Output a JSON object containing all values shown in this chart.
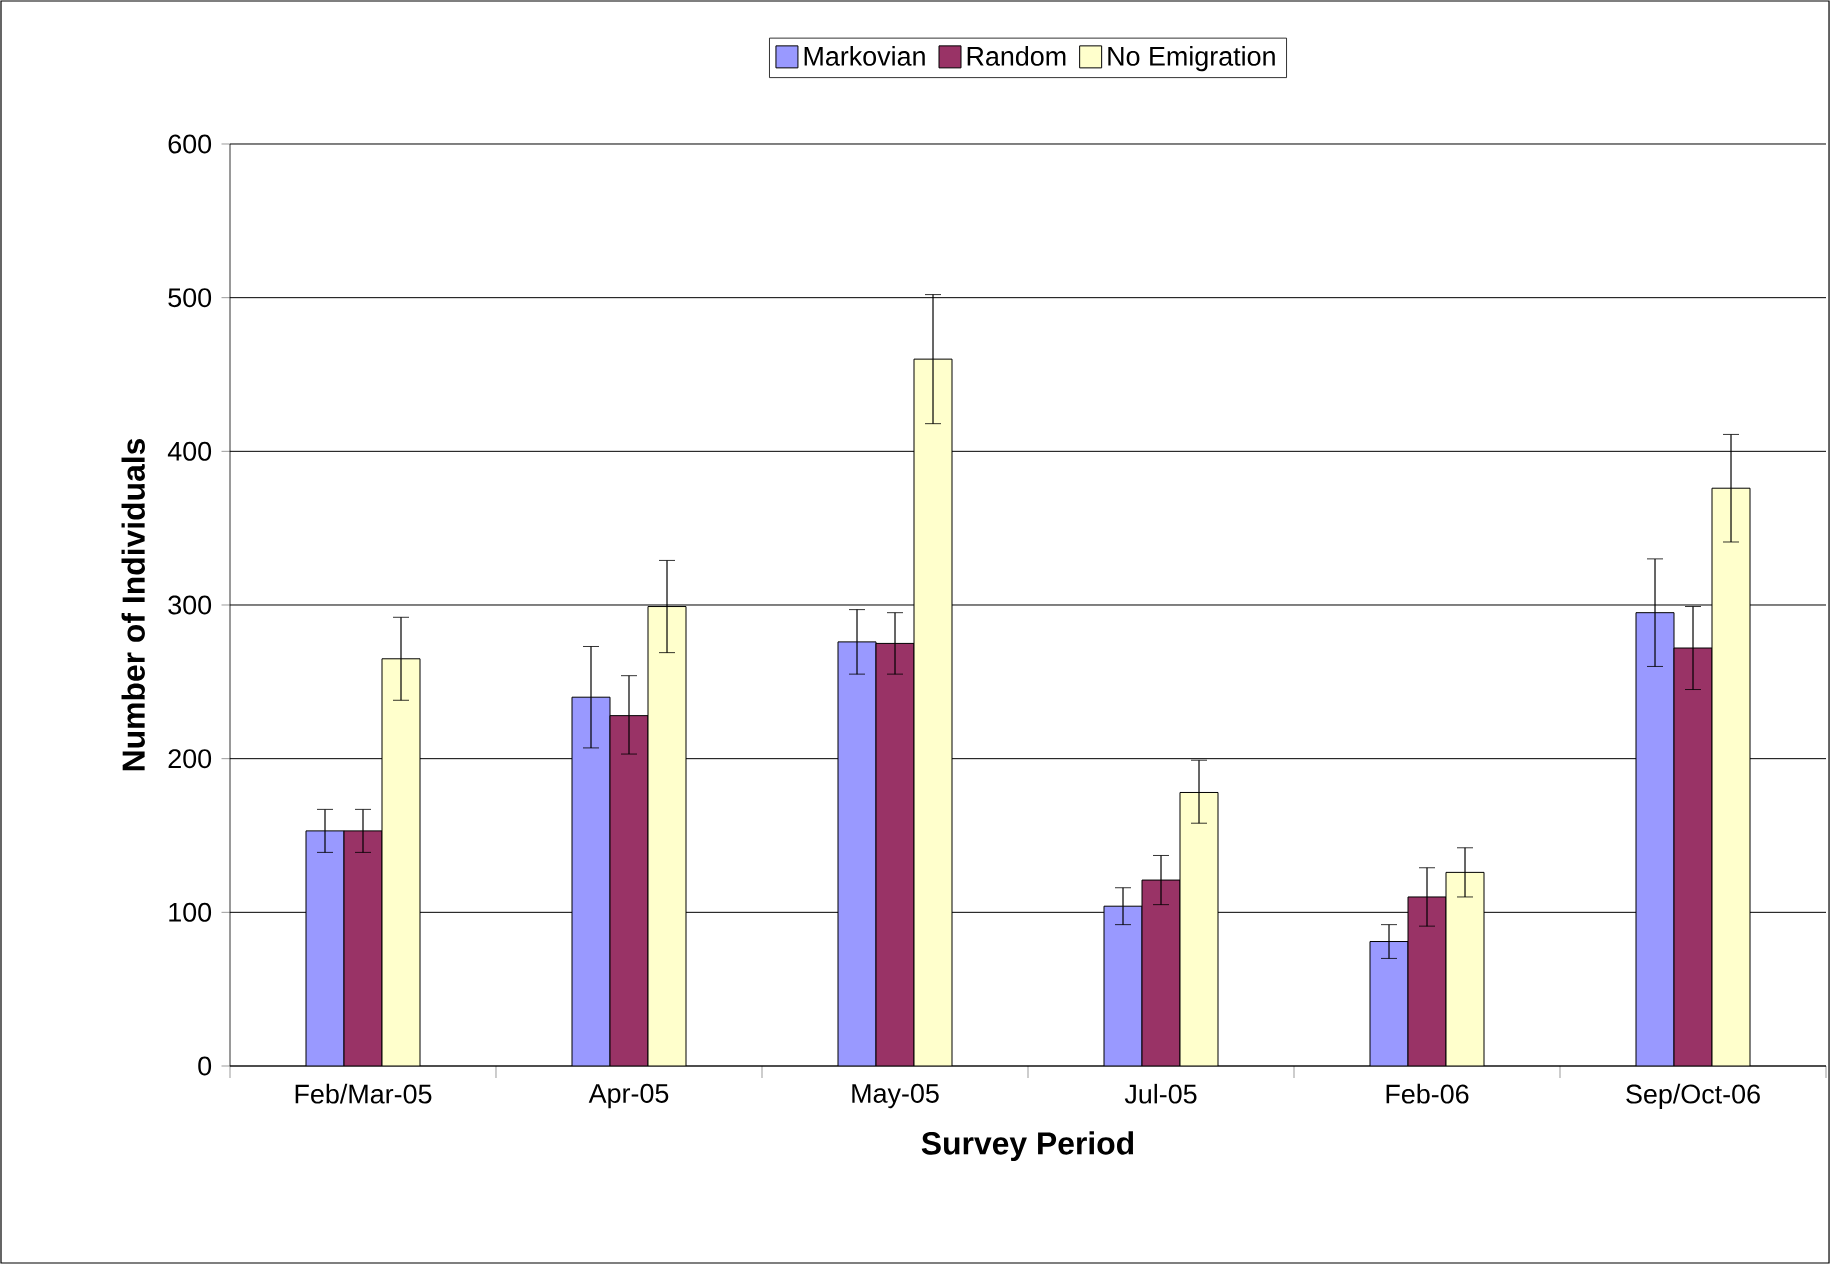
{
  "chart_data": {
    "type": "bar",
    "xlabel": "Survey Period",
    "ylabel": "Number of Individuals",
    "categories": [
      "Feb/Mar-05",
      "Apr-05",
      "May-05",
      "Jul-05",
      "Feb-06",
      "Sep/Oct-06"
    ],
    "series": [
      {
        "name": "Markovian",
        "color": "#9999ff",
        "values": [
          153,
          240,
          276,
          104,
          81,
          295
        ],
        "errors": [
          [
            139,
            167
          ],
          [
            207,
            273
          ],
          [
            255,
            297
          ],
          [
            92,
            116
          ],
          [
            70,
            92
          ],
          [
            260,
            330
          ]
        ]
      },
      {
        "name": "Random",
        "color": "#993366",
        "values": [
          153,
          228,
          275,
          121,
          110,
          272
        ],
        "errors": [
          [
            139,
            167
          ],
          [
            203,
            254
          ],
          [
            255,
            295
          ],
          [
            105,
            137
          ],
          [
            91,
            129
          ],
          [
            245,
            299
          ]
        ]
      },
      {
        "name": "No Emigration",
        "color": "#ffffcc",
        "values": [
          265,
          299,
          460,
          178,
          126,
          376
        ],
        "errors": [
          [
            238,
            292
          ],
          [
            269,
            329
          ],
          [
            418,
            502
          ],
          [
            158,
            199
          ],
          [
            110,
            142
          ],
          [
            341,
            411
          ]
        ]
      }
    ],
    "ylim": [
      0,
      600
    ],
    "yticks": [
      0,
      100,
      200,
      300,
      400,
      500,
      600
    ],
    "grid": "y",
    "legend": "top"
  }
}
